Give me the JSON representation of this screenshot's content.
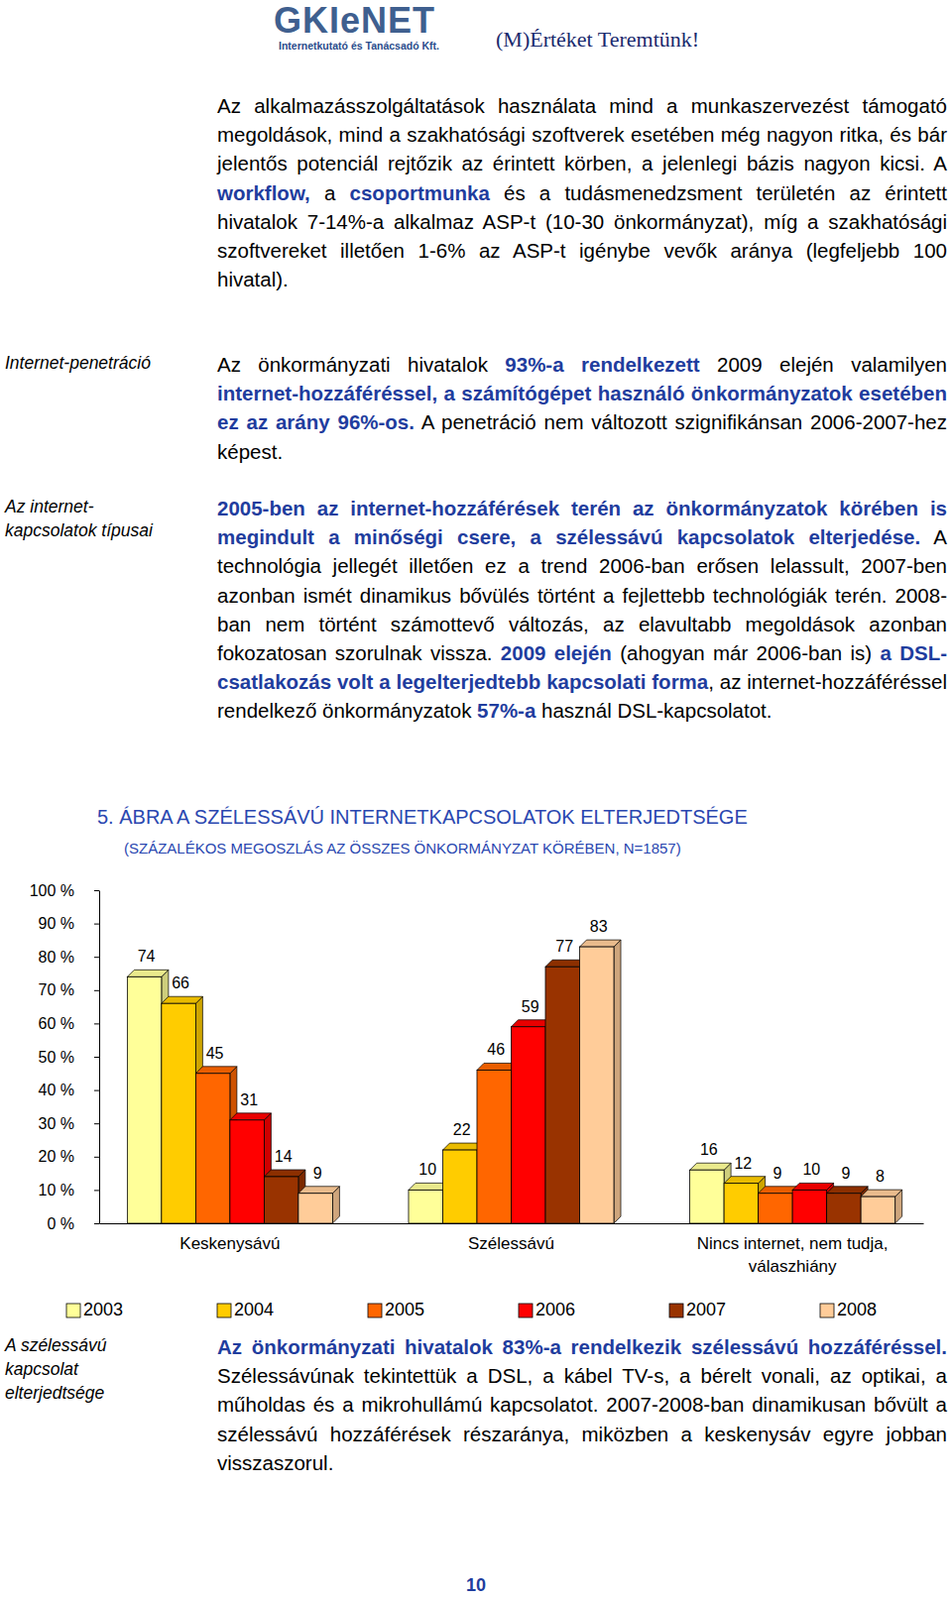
{
  "header": {
    "logo": "GKIeNET",
    "company": "Internetkutató és Tanácsadó Kft.",
    "slogan": "(M)Értéket Teremtünk!"
  },
  "sections": [
    {
      "runs": [
        {
          "text": "Az alkalmazásszolgáltatások használata mind a munkaszervezést támogató megoldások, mind a szakhatósági szoftverek esetében még nagyon ritka, és bár jelentős potenciál rejtőzik az érintett körben, a jelenlegi bázis nagyon kicsi. A ",
          "bold": false
        },
        {
          "text": "workflow,",
          "bold": true
        },
        {
          "text": " a ",
          "bold": false
        },
        {
          "text": "csoportmunka",
          "bold": true
        },
        {
          "text": " és a tudásmenedzsment területén az érintett hivatalok 7-14%-a alkalmaz ASP-t (10-30 önkormányzat), míg a szakhatósági szoftvereket illetően 1-6% az ASP-t igénybe vevők aránya (legfeljebb 100 hivatal).",
          "bold": false
        }
      ]
    },
    {
      "side_label": "Internet-penetráció",
      "runs": [
        {
          "text": "Az önkormányzati hivatalok ",
          "bold": false
        },
        {
          "text": "93%-a rendelkezett",
          "bold": true
        },
        {
          "text": " 2009 elején valamilyen ",
          "bold": false
        },
        {
          "text": "internet-hozzáféréssel, a számítógépet használó önkormányzatok esetében ez az arány 96%-os.",
          "bold": true
        },
        {
          "text": " A penetráció nem változott szignifikánsan 2006-2007-hez képest.",
          "bold": false
        }
      ]
    },
    {
      "side_label": "Az internet-kapcsolatok típusai",
      "runs": [
        {
          "text": "2005-ben az internet-hozzáférések terén az önkormányzatok körében is megindult a minőségi csere, a szélessávú kapcsolatok elterjedése.",
          "bold": true
        },
        {
          "text": " A technológia jellegét illetően ez a trend 2006-ban erősen lelassult, 2007-ben azonban ismét dinamikus bővülés történt a fejlettebb technológiák terén. 2008-ban nem történt számottevő változás, az elavultabb megoldások azonban fokozatosan szorulnak vissza. ",
          "bold": false
        },
        {
          "text": "2009 elején",
          "bold": true
        },
        {
          "text": " (ahogyan már 2006-ban is) ",
          "bold": false
        },
        {
          "text": "a DSL-csatlakozás volt a legelterjedtebb kapcsolati forma",
          "bold": true
        },
        {
          "text": ", az internet-hozzáféréssel rendelkező önkormányzatok ",
          "bold": false
        },
        {
          "text": "57%-a",
          "bold": true
        },
        {
          "text": " használ DSL-kapcsolatot.",
          "bold": false
        }
      ]
    },
    {
      "side_label": "A szélessávú kapcsolat elterjedtsége",
      "runs": [
        {
          "text": "Az önkormányzati hivatalok 83%-a rendelkezik szélessávú hozzáféréssel.",
          "bold": true
        },
        {
          "text": " Szélessávúnak tekintettük a DSL, a kábel TV-s, a bérelt vonali, az optikai, a műholdas és a mikrohullámú kapcsolatot. 2007-2008-ban dinamikusan bővült a szélessávú hozzáférések részaránya, miközben a keskenysáv egyre jobban visszaszorul.",
          "bold": false
        }
      ]
    }
  ],
  "chart_data": {
    "type": "bar",
    "title": "5. ÁBRA A SZÉLESSÁVÚ INTERNETKAPCSOLATOK ELTERJEDTSÉGE",
    "subtitle": "(SZÁZALÉKOS MEGOSZLÁS AZ ÖSSZES ÖNKORMÁNYZAT KÖRÉBEN, N=1857)",
    "categories": [
      "Keskenysávú",
      "Szélessávú",
      "Nincs internet, nem tudja, válaszhiány"
    ],
    "series": [
      {
        "name": "2003",
        "color": "#ffff99",
        "values": [
          74,
          10,
          16
        ]
      },
      {
        "name": "2004",
        "color": "#ffcc00",
        "values": [
          66,
          22,
          12
        ]
      },
      {
        "name": "2005",
        "color": "#ff6600",
        "values": [
          45,
          46,
          9
        ]
      },
      {
        "name": "2006",
        "color": "#ff0000",
        "values": [
          31,
          59,
          10
        ]
      },
      {
        "name": "2007",
        "color": "#993300",
        "values": [
          14,
          77,
          9
        ]
      },
      {
        "name": "2008",
        "color": "#ffcc99",
        "values": [
          9,
          83,
          8
        ]
      }
    ],
    "ylim": [
      0,
      100
    ],
    "yticks": [
      {
        "value": 0,
        "label": "0 %"
      },
      {
        "value": 10,
        "label": "10 %"
      },
      {
        "value": 20,
        "label": "20 %"
      },
      {
        "value": 30,
        "label": "30 %"
      },
      {
        "value": 40,
        "label": "40 %"
      },
      {
        "value": 50,
        "label": "50 %"
      },
      {
        "value": 60,
        "label": "60 %"
      },
      {
        "value": 70,
        "label": "70 %"
      },
      {
        "value": 80,
        "label": "80 %"
      },
      {
        "value": 90,
        "label": "90 %"
      },
      {
        "value": 100,
        "label": "100 %"
      }
    ],
    "grid": false,
    "data_labels": true,
    "legend": "bottom"
  },
  "page_number": "10"
}
